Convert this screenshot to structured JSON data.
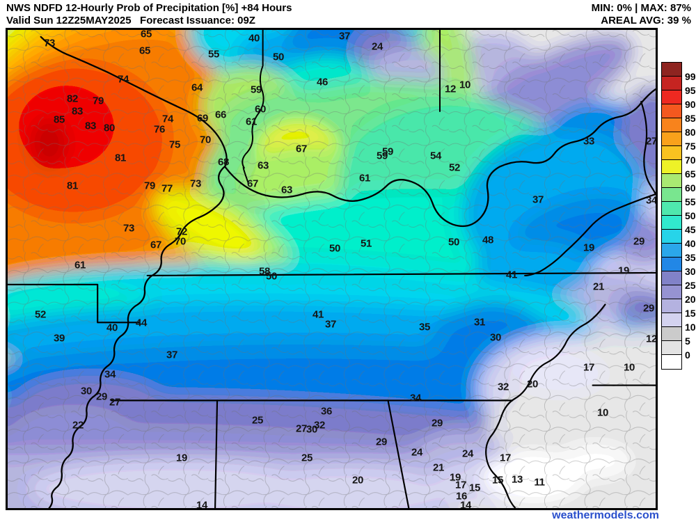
{
  "header": {
    "title_line1": "NWS NDFD 12-Hourly Prob of Precipitation [%] +84 Hours",
    "title_line2": "Valid Sun 12Z25MAY2025   Forecast Issuance: 09Z",
    "stats_line1": "MIN: 0% | MAX: 87%",
    "stats_line2": "AREAL AVG: 39 %"
  },
  "footer": {
    "watermark": "weathermodels.com",
    "watermark_color": "#2b50cc"
  },
  "colorbar": {
    "unit": "%",
    "tick_labels": [
      "99",
      "95",
      "90",
      "85",
      "80",
      "75",
      "70",
      "65",
      "60",
      "55",
      "50",
      "45",
      "40",
      "35",
      "30",
      "25",
      "20",
      "15",
      "10",
      "5",
      "0"
    ],
    "colors": [
      "#8e2420",
      "#c62421",
      "#ee2921",
      "#f4581f",
      "#f8831c",
      "#f9a11b",
      "#f9c220",
      "#eef227",
      "#a9e972",
      "#79e68f",
      "#4fe8ae",
      "#31e9ce",
      "#27d4e9",
      "#2ba7ea",
      "#2287e6",
      "#8182c8",
      "#9693d2",
      "#b4b2e0",
      "#d3d2ef",
      "#cbcbcb",
      "#e3e3e3",
      "#ffffff"
    ]
  },
  "map": {
    "description": "Probability of precipitation point values (percent) with screenshot x,y anchor",
    "labels": [
      [
        73,
        71,
        62
      ],
      [
        65,
        210,
        49
      ],
      [
        65,
        208,
        73
      ],
      [
        55,
        307,
        78
      ],
      [
        40,
        365,
        55
      ],
      [
        37,
        495,
        52
      ],
      [
        24,
        542,
        67
      ],
      [
        50,
        400,
        82
      ],
      [
        46,
        463,
        118
      ],
      [
        74,
        177,
        114
      ],
      [
        64,
        283,
        126
      ],
      [
        12,
        647,
        128
      ],
      [
        10,
        668,
        122
      ],
      [
        82,
        104,
        142
      ],
      [
        79,
        141,
        145
      ],
      [
        83,
        111,
        160
      ],
      [
        85,
        85,
        172
      ],
      [
        83,
        130,
        181
      ],
      [
        80,
        157,
        184
      ],
      [
        74,
        241,
        171
      ],
      [
        76,
        229,
        186
      ],
      [
        69,
        291,
        170
      ],
      [
        66,
        317,
        165
      ],
      [
        59,
        368,
        129
      ],
      [
        60,
        374,
        157
      ],
      [
        61,
        361,
        175
      ],
      [
        75,
        251,
        208
      ],
      [
        70,
        295,
        201
      ],
      [
        67,
        433,
        214
      ],
      [
        81,
        173,
        227
      ],
      [
        68,
        321,
        233
      ],
      [
        63,
        378,
        238
      ],
      [
        59,
        549,
        224
      ],
      [
        59,
        557,
        218
      ],
      [
        54,
        626,
        224
      ],
      [
        52,
        653,
        241
      ],
      [
        61,
        524,
        256
      ],
      [
        33,
        846,
        203
      ],
      [
        27,
        936,
        203
      ],
      [
        81,
        104,
        267
      ],
      [
        79,
        215,
        267
      ],
      [
        77,
        240,
        271
      ],
      [
        73,
        281,
        264
      ],
      [
        63,
        412,
        273
      ],
      [
        67,
        363,
        264
      ],
      [
        37,
        773,
        287
      ],
      [
        34,
        936,
        288
      ],
      [
        73,
        185,
        328
      ],
      [
        72,
        261,
        333
      ],
      [
        70,
        259,
        347
      ],
      [
        67,
        224,
        352
      ],
      [
        61,
        115,
        381
      ],
      [
        50,
        481,
        357
      ],
      [
        51,
        526,
        350
      ],
      [
        50,
        652,
        348
      ],
      [
        48,
        701,
        345
      ],
      [
        19,
        846,
        356
      ],
      [
        29,
        918,
        347
      ],
      [
        19,
        896,
        389
      ],
      [
        21,
        860,
        412
      ],
      [
        41,
        735,
        395
      ],
      [
        58,
        380,
        390
      ],
      [
        50,
        390,
        397
      ],
      [
        52,
        58,
        452
      ],
      [
        44,
        203,
        464
      ],
      [
        40,
        161,
        471
      ],
      [
        39,
        85,
        486
      ],
      [
        41,
        457,
        452
      ],
      [
        37,
        475,
        466
      ],
      [
        35,
        610,
        470
      ],
      [
        31,
        689,
        463
      ],
      [
        30,
        712,
        485
      ],
      [
        29,
        932,
        443
      ],
      [
        12,
        936,
        487
      ],
      [
        37,
        247,
        510
      ],
      [
        34,
        158,
        538
      ],
      [
        17,
        846,
        528
      ],
      [
        10,
        904,
        528
      ],
      [
        30,
        124,
        562
      ],
      [
        29,
        146,
        570
      ],
      [
        27,
        165,
        578
      ],
      [
        32,
        723,
        556
      ],
      [
        20,
        765,
        552
      ],
      [
        34,
        597,
        572
      ],
      [
        36,
        469,
        591
      ],
      [
        22,
        112,
        611
      ],
      [
        25,
        370,
        604
      ],
      [
        27,
        433,
        616
      ],
      [
        30,
        448,
        617
      ],
      [
        32,
        459,
        611
      ],
      [
        29,
        548,
        635
      ],
      [
        29,
        628,
        608
      ],
      [
        10,
        866,
        593
      ],
      [
        24,
        599,
        650
      ],
      [
        24,
        672,
        652
      ],
      [
        25,
        441,
        658
      ],
      [
        19,
        261,
        658
      ],
      [
        21,
        630,
        672
      ],
      [
        20,
        514,
        690
      ],
      [
        19,
        654,
        686
      ],
      [
        17,
        726,
        658
      ],
      [
        17,
        662,
        697
      ],
      [
        15,
        682,
        701
      ],
      [
        15,
        715,
        690
      ],
      [
        13,
        743,
        689
      ],
      [
        11,
        775,
        693
      ],
      [
        16,
        663,
        713
      ],
      [
        14,
        669,
        726
      ],
      [
        14,
        290,
        726
      ]
    ]
  }
}
